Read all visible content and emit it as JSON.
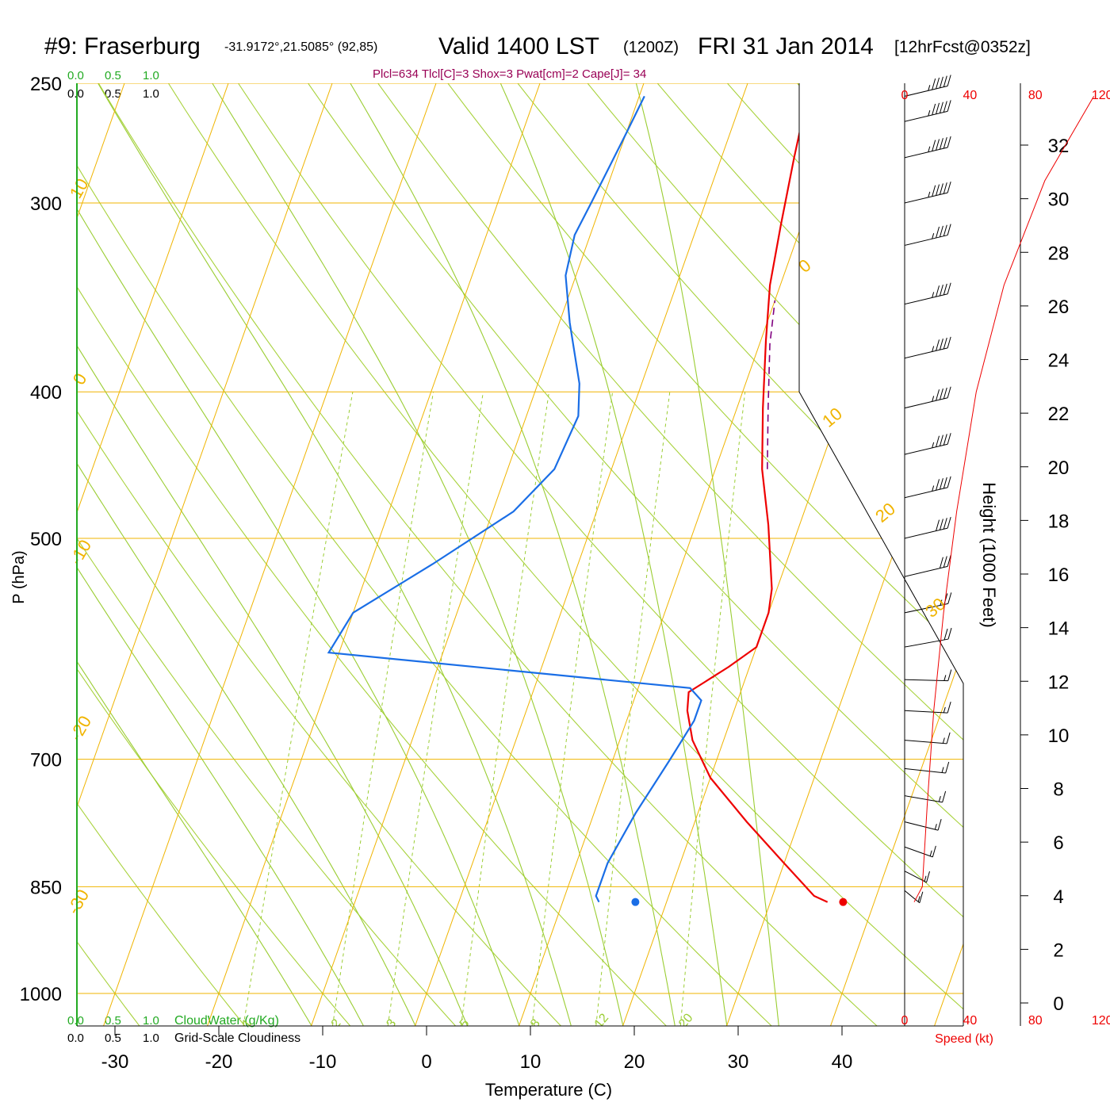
{
  "header": {
    "station": "#9: Fraserburg",
    "coords": "-31.9172°,21.5085° (92,85)",
    "valid": "Valid 1400 LST",
    "utc": "(1200Z)",
    "date": "FRI 31 Jan 2014",
    "forecast": "[12hrFcst@0352z]"
  },
  "indices": "Plcl=634 Tlcl[C]=3 Shox=3 Pwat[cm]=2 Cape[J]= 34",
  "cloud_scale": {
    "green_ticks": [
      "0.0",
      "0.5",
      "1.0"
    ],
    "black_ticks": [
      "0.0",
      "0.5",
      "1.0"
    ],
    "cloudwater_label": "CloudWater (g/Kg)",
    "cloudiness_label": "Grid-Scale Cloudiness"
  },
  "colors": {
    "isobar": "#f0b400",
    "isotherm": "#f0b400",
    "dry_adiabat": "#a8d23c",
    "moist_adiabat": "#9acd32",
    "mixing_ratio": "#9acd32",
    "temperature": "#ee0000",
    "dewpoint": "#1a6ee6",
    "parcel": "#800080",
    "indices_text": "#990055",
    "green_label": "#22aa22",
    "speed_axis": "#ee0000"
  },
  "chart_data": {
    "type": "line",
    "title": "#9: Fraserburg",
    "xlabel": "Temperature (C)",
    "ylabel": "P (hPa)",
    "right_ylabel": "Height (1000 Feet)",
    "xlim": [
      -34,
      46
    ],
    "ylim": [
      1050,
      250
    ],
    "x_ticks": [
      -30,
      -20,
      -10,
      0,
      10,
      20,
      30,
      40
    ],
    "pressure_ticks": [
      1000,
      850,
      700,
      500,
      400,
      300,
      250
    ],
    "height_ticks": [
      0,
      2,
      4,
      6,
      8,
      10,
      12,
      14,
      16,
      18,
      20,
      22,
      24,
      26,
      28,
      30,
      32
    ],
    "isotherm_labels": [
      {
        "t": 10,
        "text": "10"
      },
      {
        "t": 0,
        "text": "0"
      },
      {
        "t": -10,
        "text": "-10"
      },
      {
        "t": -20,
        "text": "-20"
      },
      {
        "t": -30,
        "text": "-30"
      },
      {
        "t": 10,
        "text": "10"
      },
      {
        "t": 20,
        "text": "20"
      },
      {
        "t": 30,
        "text": "30"
      },
      {
        "t": 0,
        "text": "0"
      }
    ],
    "mixing_ratio_labels": [
      "1",
      "2",
      "3",
      "5",
      "8",
      "12",
      "20"
    ],
    "series": [
      {
        "name": "Temperature",
        "points": [
          [
            35.5,
            870
          ],
          [
            34.0,
            862
          ],
          [
            30.0,
            820
          ],
          [
            25.0,
            770
          ],
          [
            20.0,
            720
          ],
          [
            17.0,
            680
          ],
          [
            15.5,
            650
          ],
          [
            15.0,
            632
          ],
          [
            16.5,
            620
          ],
          [
            18.0,
            608
          ],
          [
            20.0,
            590
          ],
          [
            20.0,
            560
          ],
          [
            19.5,
            540
          ],
          [
            17.0,
            490
          ],
          [
            14.5,
            450
          ],
          [
            12.5,
            410
          ],
          [
            10.5,
            370
          ],
          [
            9.0,
            340
          ],
          [
            8.0,
            310
          ],
          [
            7.0,
            280
          ],
          [
            6.2,
            255
          ]
        ]
      },
      {
        "name": "Dewpoint",
        "points": [
          [
            13.5,
            870
          ],
          [
            13.0,
            862
          ],
          [
            13.0,
            850
          ],
          [
            13.0,
            820
          ],
          [
            14.0,
            760
          ],
          [
            15.5,
            700
          ],
          [
            16.5,
            660
          ],
          [
            16.5,
            640
          ],
          [
            15.0,
            628
          ],
          [
            -21.0,
            595
          ],
          [
            -20.0,
            560
          ],
          [
            -14.0,
            520
          ],
          [
            -8.0,
            480
          ],
          [
            -5.5,
            450
          ],
          [
            -5.0,
            415
          ],
          [
            -6.0,
            395
          ],
          [
            -9.0,
            360
          ],
          [
            -11.0,
            335
          ],
          [
            -11.5,
            315
          ],
          [
            -11.0,
            300
          ],
          [
            -10.0,
            270
          ],
          [
            -9.5,
            255
          ]
        ]
      },
      {
        "name": "Parcel",
        "points": [
          [
            15.0,
            450
          ],
          [
            13.0,
            410
          ],
          [
            11.0,
            372
          ],
          [
            10.0,
            348
          ]
        ]
      }
    ],
    "surface_markers": [
      {
        "name": "sfc_temp",
        "t": 37.0,
        "p": 870
      },
      {
        "name": "sfc_dewpoint",
        "t": 17.0,
        "p": 870
      }
    ],
    "wind_speed_axis": {
      "label": "Speed (kt)",
      "ticks": [
        "0",
        "40",
        "80",
        "120"
      ],
      "profile": [
        [
          0,
          870
        ],
        [
          5,
          850
        ],
        [
          8,
          750
        ],
        [
          12,
          650
        ],
        [
          18,
          560
        ],
        [
          26,
          480
        ],
        [
          38,
          400
        ],
        [
          55,
          340
        ],
        [
          80,
          290
        ],
        [
          110,
          255
        ]
      ]
    },
    "wind_barbs": [
      {
        "p": 855,
        "dir": 200,
        "spd": 15
      },
      {
        "p": 830,
        "dir": 210,
        "spd": 15
      },
      {
        "p": 800,
        "dir": 220,
        "spd": 15
      },
      {
        "p": 770,
        "dir": 230,
        "spd": 15
      },
      {
        "p": 740,
        "dir": 240,
        "spd": 15
      },
      {
        "p": 710,
        "dir": 250,
        "spd": 15
      },
      {
        "p": 680,
        "dir": 255,
        "spd": 15
      },
      {
        "p": 650,
        "dir": 260,
        "spd": 15
      },
      {
        "p": 620,
        "dir": 265,
        "spd": 15
      },
      {
        "p": 590,
        "dir": 270,
        "spd": 20
      },
      {
        "p": 560,
        "dir": 275,
        "spd": 25
      },
      {
        "p": 530,
        "dir": 280,
        "spd": 30
      },
      {
        "p": 500,
        "dir": 280,
        "spd": 40
      },
      {
        "p": 470,
        "dir": 280,
        "spd": 45
      },
      {
        "p": 440,
        "dir": 280,
        "spd": 45
      },
      {
        "p": 410,
        "dir": 280,
        "spd": 45
      },
      {
        "p": 380,
        "dir": 280,
        "spd": 45
      },
      {
        "p": 350,
        "dir": 280,
        "spd": 45
      },
      {
        "p": 320,
        "dir": 280,
        "spd": 45
      },
      {
        "p": 300,
        "dir": 280,
        "spd": 55
      },
      {
        "p": 280,
        "dir": 280,
        "spd": 55
      },
      {
        "p": 265,
        "dir": 280,
        "spd": 55
      },
      {
        "p": 255,
        "dir": 280,
        "spd": 55
      }
    ]
  }
}
